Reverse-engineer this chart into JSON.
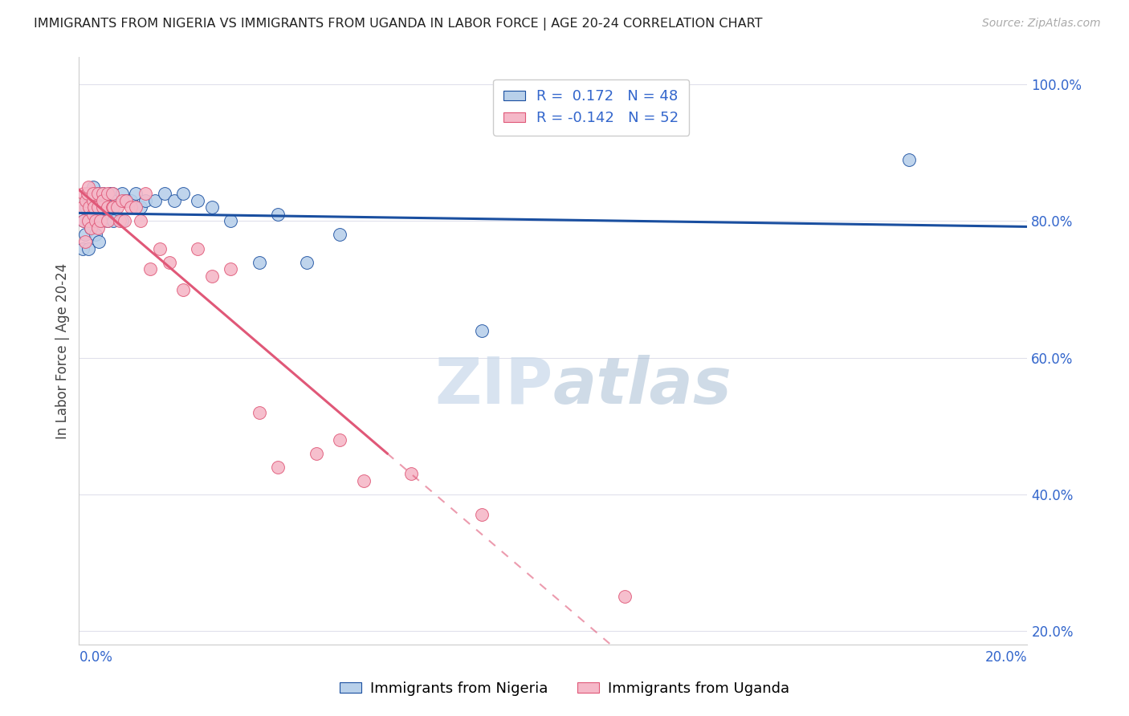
{
  "title": "IMMIGRANTS FROM NIGERIA VS IMMIGRANTS FROM UGANDA IN LABOR FORCE | AGE 20-24 CORRELATION CHART",
  "source": "Source: ZipAtlas.com",
  "ylabel": "In Labor Force | Age 20-24",
  "nigeria_R": 0.172,
  "nigeria_N": 48,
  "uganda_R": -0.142,
  "uganda_N": 52,
  "nigeria_color": "#b8d0ea",
  "uganda_color": "#f5b8c8",
  "nigeria_line_color": "#1a4fa0",
  "uganda_line_color": "#e05878",
  "title_color": "#222222",
  "source_color": "#aaaaaa",
  "axis_label_color": "#3366cc",
  "watermark_color": "#c8d8ea",
  "background_color": "#ffffff",
  "grid_color": "#e0e0ec",
  "nigeria_x": [
    0.0008,
    0.001,
    0.0012,
    0.0015,
    0.0018,
    0.002,
    0.002,
    0.0022,
    0.0025,
    0.003,
    0.003,
    0.003,
    0.0032,
    0.0035,
    0.004,
    0.004,
    0.0042,
    0.0045,
    0.005,
    0.005,
    0.0055,
    0.006,
    0.006,
    0.0065,
    0.007,
    0.007,
    0.0072,
    0.008,
    0.009,
    0.009,
    0.01,
    0.011,
    0.012,
    0.013,
    0.014,
    0.016,
    0.018,
    0.02,
    0.022,
    0.025,
    0.028,
    0.032,
    0.038,
    0.042,
    0.048,
    0.055,
    0.085,
    0.175
  ],
  "nigeria_y": [
    0.76,
    0.8,
    0.78,
    0.82,
    0.84,
    0.8,
    0.76,
    0.83,
    0.79,
    0.83,
    0.85,
    0.8,
    0.82,
    0.78,
    0.84,
    0.8,
    0.77,
    0.82,
    0.84,
    0.8,
    0.82,
    0.83,
    0.8,
    0.84,
    0.82,
    0.84,
    0.8,
    0.83,
    0.84,
    0.8,
    0.83,
    0.83,
    0.84,
    0.82,
    0.83,
    0.83,
    0.84,
    0.83,
    0.84,
    0.83,
    0.82,
    0.8,
    0.74,
    0.81,
    0.74,
    0.78,
    0.64,
    0.89
  ],
  "uganda_x": [
    0.0008,
    0.001,
    0.001,
    0.0012,
    0.0015,
    0.0018,
    0.002,
    0.002,
    0.0022,
    0.0025,
    0.003,
    0.003,
    0.003,
    0.0032,
    0.0035,
    0.004,
    0.004,
    0.004,
    0.0045,
    0.005,
    0.005,
    0.005,
    0.006,
    0.006,
    0.006,
    0.007,
    0.007,
    0.0072,
    0.008,
    0.0085,
    0.009,
    0.0095,
    0.01,
    0.011,
    0.012,
    0.013,
    0.014,
    0.015,
    0.017,
    0.019,
    0.022,
    0.025,
    0.028,
    0.032,
    0.038,
    0.042,
    0.05,
    0.055,
    0.06,
    0.07,
    0.085,
    0.115
  ],
  "uganda_y": [
    0.82,
    0.8,
    0.84,
    0.77,
    0.83,
    0.84,
    0.8,
    0.85,
    0.82,
    0.79,
    0.83,
    0.81,
    0.84,
    0.82,
    0.8,
    0.82,
    0.84,
    0.79,
    0.8,
    0.82,
    0.84,
    0.83,
    0.82,
    0.84,
    0.8,
    0.82,
    0.84,
    0.82,
    0.82,
    0.8,
    0.83,
    0.8,
    0.83,
    0.82,
    0.82,
    0.8,
    0.84,
    0.73,
    0.76,
    0.74,
    0.7,
    0.76,
    0.72,
    0.73,
    0.52,
    0.44,
    0.46,
    0.48,
    0.42,
    0.43,
    0.37,
    0.25
  ],
  "xmin": 0.0,
  "xmax": 0.2,
  "ymin": 0.18,
  "ymax": 1.04,
  "ytick_positions": [
    0.2,
    0.4,
    0.6,
    0.8,
    1.0
  ],
  "ytick_labels": [
    "20.0%",
    "40.0%",
    "60.0%",
    "80.0%",
    "100.0%"
  ]
}
